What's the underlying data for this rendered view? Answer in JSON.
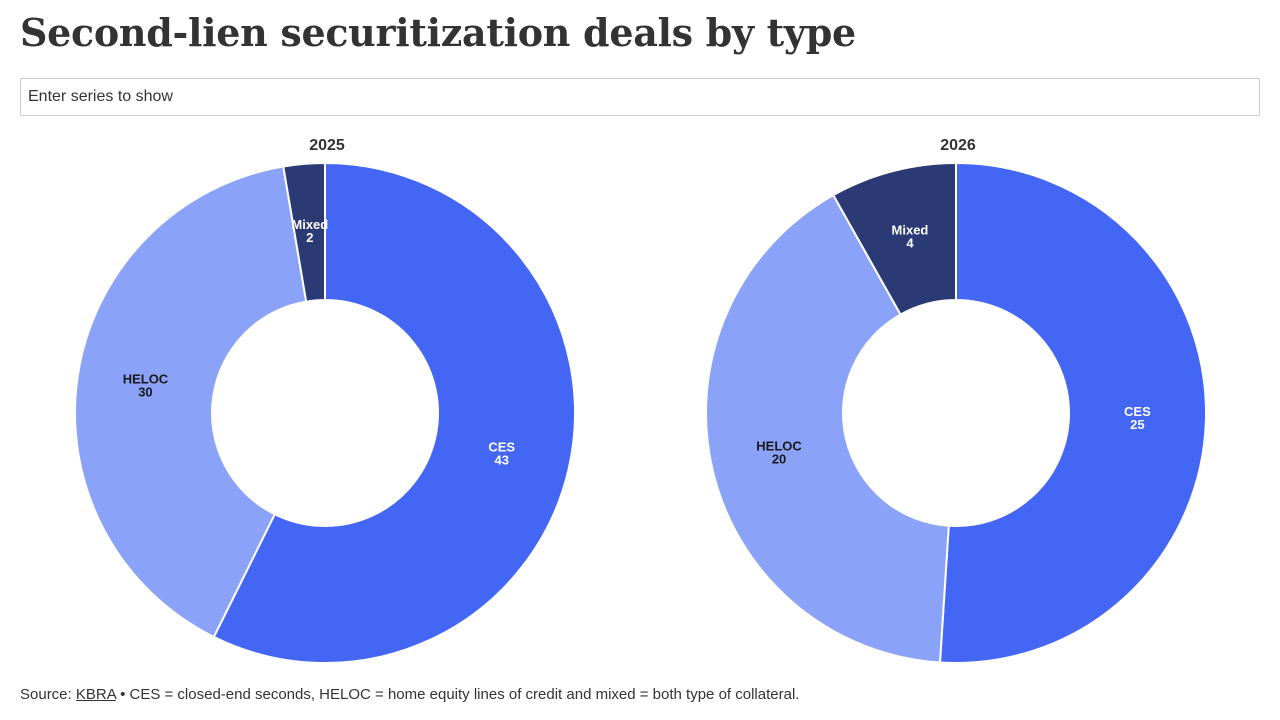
{
  "header": {
    "title": "Second-lien securitization deals by type"
  },
  "search": {
    "placeholder": "Enter series to show"
  },
  "colors": {
    "CES": "#4466f4",
    "HELOC": "#8aa2f8",
    "Mixed": "#2b3a75"
  },
  "chart_data": [
    {
      "type": "pie",
      "title": "2025",
      "slices": [
        {
          "label": "CES",
          "value": 43
        },
        {
          "label": "HELOC",
          "value": 30
        },
        {
          "label": "Mixed",
          "value": 2
        }
      ]
    },
    {
      "type": "pie",
      "title": "2026",
      "slices": [
        {
          "label": "CES",
          "value": 25
        },
        {
          "label": "HELOC",
          "value": 20
        },
        {
          "label": "Mixed",
          "value": 4
        }
      ]
    }
  ],
  "footer": {
    "prefix": "Source: ",
    "source_link": "KBRA",
    "note": " • CES = closed-end seconds, HELOC = home equity lines of credit and mixed = both type of collateral."
  }
}
